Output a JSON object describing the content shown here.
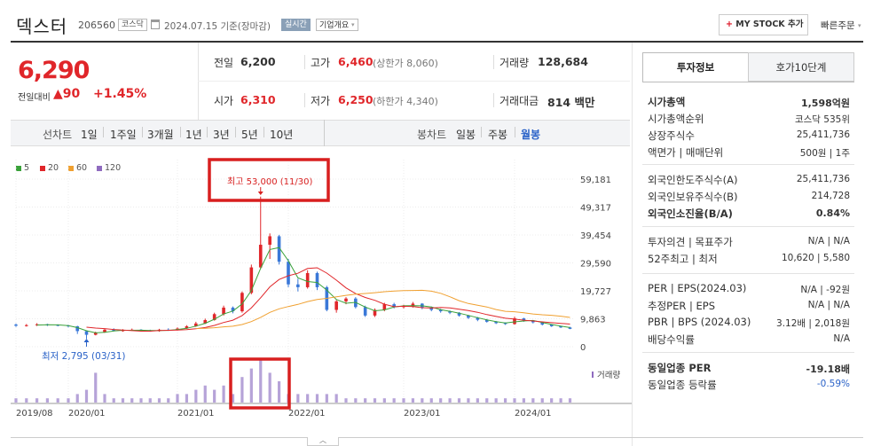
{
  "header": {
    "name": "덱스터",
    "code": "206560",
    "market": "코스닥",
    "date": "2024.07.15 기준(장마감)",
    "live_tag": "실시간",
    "company_tag": "기업개요",
    "mystock_label": "MY STOCK 추가",
    "quick_order": "빠른주문"
  },
  "price": {
    "current": "6,290",
    "change_label": "전일대비",
    "change_value": "90",
    "change_pct": "+1.45%",
    "up_color": "#e0262a"
  },
  "quote": {
    "prev_label": "전일",
    "prev_value": "6,200",
    "high_label": "고가",
    "high_value": "6,460",
    "high_sub": "(상한가 8,060)",
    "volume_label": "거래량",
    "volume_value": "128,684",
    "open_label": "시가",
    "open_value": "6,310",
    "low_label": "저가",
    "low_value": "6,250",
    "low_sub": "(하한가 4,340)",
    "amount_label": "거래대금",
    "amount_value": "814 백만"
  },
  "periods": {
    "label": "선차트",
    "items": [
      "1일",
      "1주일",
      "3개월",
      "1년",
      "3년",
      "5년",
      "10년"
    ],
    "candle_label": "봉차트",
    "candle_items": [
      "일봉",
      "주봉",
      "월봉"
    ],
    "active_candle": "월봉"
  },
  "legend": [
    {
      "label": "5",
      "color": "#3aa23a"
    },
    {
      "label": "20",
      "color": "#e0262a"
    },
    {
      "label": "60",
      "color": "#f0a030"
    },
    {
      "label": "120",
      "color": "#8f6bbf"
    }
  ],
  "chart_data": {
    "type": "candlestick",
    "y_ticks": [
      "59,181",
      "49,317",
      "39,454",
      "29,590",
      "19,727",
      "9,863",
      "0"
    ],
    "x_ticks": [
      "2019/08",
      "2020/01",
      "2021/01",
      "2022/01",
      "2023/01",
      "2024/01"
    ],
    "high_annotation": "최고 53,000 (11/30)",
    "low_annotation": "최저 2,795 (03/31)",
    "volume_label": "거래량",
    "ylim": [
      0,
      59181
    ],
    "up_color": "#e0262a",
    "down_color": "#3a78d8"
  },
  "panel": {
    "tab_info": "투자정보",
    "tab_orderbook": "호가10단계",
    "rows1": [
      {
        "label": "시가총액",
        "value": "1,598억원",
        "bold": true
      },
      {
        "label": "시가총액순위",
        "value": "코스닥 535위"
      },
      {
        "label": "상장주식수",
        "value": "25,411,736"
      },
      {
        "label": "액면가 | 매매단위",
        "value": "500원 | 1주"
      }
    ],
    "rows2": [
      {
        "label": "외국인한도주식수(A)",
        "value": "25,411,736"
      },
      {
        "label": "외국인보유주식수(B)",
        "value": "214,728"
      },
      {
        "label": "외국인소진율(B/A)",
        "value": "0.84%",
        "bold": true
      }
    ],
    "rows3": [
      {
        "label": "투자의견 | 목표주가",
        "value": "N/A | N/A"
      },
      {
        "label": "52주최고 | 최저",
        "value": "10,620 | 5,580"
      }
    ],
    "rows4": [
      {
        "label": "PER | EPS(2024.03)",
        "value": "N/A | -92원"
      },
      {
        "label": "추정PER | EPS",
        "value": "N/A | N/A"
      },
      {
        "label": "PBR | BPS (2024.03)",
        "value": "3.12배 | 2,018원"
      },
      {
        "label": "배당수익률",
        "value": "N/A"
      }
    ],
    "rows5": [
      {
        "label": "동일업종 PER",
        "value": "-19.18배",
        "bold": true
      },
      {
        "label": "동일업종 등락률",
        "value": "-0.59%",
        "blue": true
      }
    ]
  }
}
